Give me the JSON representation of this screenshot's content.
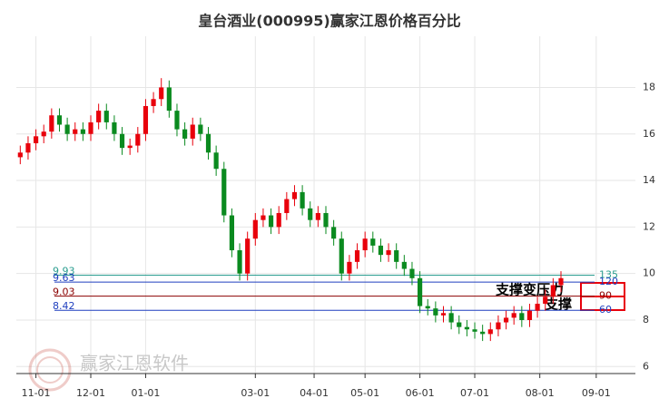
{
  "chart_data": {
    "type": "candlestick",
    "title": "皇台酒业(000995)赢家江恩价格百分比",
    "watermark": "赢家江恩软件",
    "up_color": "#e8000b",
    "down_color": "#0a8a1f",
    "ylim": [
      5.7,
      20.2
    ],
    "yticks": [
      6,
      8,
      10,
      12,
      14,
      16,
      18
    ],
    "xlim": [
      -0.5,
      78.5
    ],
    "xticks": [
      {
        "value": 2,
        "label": "11-01"
      },
      {
        "value": 9,
        "label": "12-01"
      },
      {
        "value": 16,
        "label": "01-01"
      },
      {
        "value": 30,
        "label": "03-01"
      },
      {
        "value": 37.5,
        "label": "04-01"
      },
      {
        "value": 44,
        "label": "05-01"
      },
      {
        "value": 51,
        "label": "06-01"
      },
      {
        "value": 58,
        "label": "07-01"
      },
      {
        "value": 66.3,
        "label": "08-01"
      },
      {
        "value": 73.5,
        "label": "09-01"
      }
    ],
    "grid": true,
    "levels": [
      {
        "value": 9.93,
        "score": 135,
        "color": "#2a9d8f"
      },
      {
        "value": 9.63,
        "score": 120,
        "color": "#1f3fbf"
      },
      {
        "value": 9.03,
        "score": 90,
        "color": "#8b0000"
      },
      {
        "value": 8.42,
        "score": 60,
        "color": "#1f3fbf"
      }
    ],
    "annotations": [
      "支撑变压力",
      "支撑"
    ],
    "candles": [
      [
        15.0,
        15.5,
        14.7,
        15.2
      ],
      [
        15.2,
        15.9,
        14.9,
        15.6
      ],
      [
        15.6,
        16.2,
        15.3,
        15.9
      ],
      [
        15.9,
        16.4,
        15.6,
        16.1
      ],
      [
        16.1,
        17.1,
        15.8,
        16.8
      ],
      [
        16.8,
        17.1,
        16.1,
        16.4
      ],
      [
        16.4,
        16.7,
        15.7,
        16.0
      ],
      [
        16.0,
        16.5,
        15.7,
        16.2
      ],
      [
        16.2,
        16.5,
        15.7,
        16.0
      ],
      [
        16.0,
        16.8,
        15.7,
        16.5
      ],
      [
        16.5,
        17.3,
        16.2,
        17.0
      ],
      [
        17.0,
        17.3,
        16.2,
        16.5
      ],
      [
        16.5,
        16.8,
        15.7,
        16.0
      ],
      [
        16.0,
        16.3,
        15.1,
        15.4
      ],
      [
        15.4,
        15.8,
        15.1,
        15.5
      ],
      [
        15.5,
        16.3,
        15.2,
        16.0
      ],
      [
        16.0,
        17.5,
        15.7,
        17.2
      ],
      [
        17.2,
        17.8,
        16.9,
        17.5
      ],
      [
        17.5,
        18.4,
        17.2,
        18.0
      ],
      [
        18.0,
        18.3,
        16.7,
        17.0
      ],
      [
        17.0,
        17.3,
        15.9,
        16.2
      ],
      [
        16.2,
        16.5,
        15.5,
        15.8
      ],
      [
        15.8,
        16.7,
        15.5,
        16.4
      ],
      [
        16.4,
        16.7,
        15.7,
        16.0
      ],
      [
        16.0,
        16.3,
        14.9,
        15.2
      ],
      [
        15.2,
        15.5,
        14.2,
        14.5
      ],
      [
        14.5,
        14.8,
        12.2,
        12.5
      ],
      [
        12.5,
        12.8,
        10.7,
        11.0
      ],
      [
        11.0,
        11.3,
        9.7,
        10.0
      ],
      [
        10.0,
        11.8,
        9.7,
        11.5
      ],
      [
        11.5,
        12.6,
        11.2,
        12.3
      ],
      [
        12.3,
        12.8,
        12.0,
        12.5
      ],
      [
        12.5,
        12.8,
        11.7,
        12.0
      ],
      [
        12.0,
        12.9,
        11.7,
        12.6
      ],
      [
        12.6,
        13.5,
        12.3,
        13.2
      ],
      [
        13.2,
        13.8,
        12.9,
        13.5
      ],
      [
        13.5,
        13.8,
        12.5,
        12.8
      ],
      [
        12.8,
        13.1,
        12.0,
        12.3
      ],
      [
        12.3,
        12.9,
        12.0,
        12.6
      ],
      [
        12.6,
        12.9,
        11.7,
        12.0
      ],
      [
        12.0,
        12.3,
        11.2,
        11.5
      ],
      [
        11.5,
        11.8,
        9.7,
        10.0
      ],
      [
        10.0,
        10.8,
        9.7,
        10.5
      ],
      [
        10.5,
        11.3,
        10.2,
        11.0
      ],
      [
        11.0,
        11.8,
        10.7,
        11.5
      ],
      [
        11.5,
        11.8,
        10.9,
        11.2
      ],
      [
        11.2,
        11.5,
        10.5,
        10.8
      ],
      [
        10.8,
        11.3,
        10.5,
        11.0
      ],
      [
        11.0,
        11.3,
        10.2,
        10.5
      ],
      [
        10.5,
        10.8,
        9.9,
        10.2
      ],
      [
        10.2,
        10.5,
        9.5,
        9.8
      ],
      [
        9.8,
        10.1,
        8.3,
        8.6
      ],
      [
        8.6,
        8.9,
        8.2,
        8.5
      ],
      [
        8.5,
        8.8,
        7.9,
        8.2
      ],
      [
        8.2,
        8.6,
        7.9,
        8.3
      ],
      [
        8.3,
        8.6,
        7.6,
        7.9
      ],
      [
        7.9,
        8.2,
        7.4,
        7.7
      ],
      [
        7.7,
        8.0,
        7.3,
        7.6
      ],
      [
        7.6,
        7.9,
        7.2,
        7.5
      ],
      [
        7.5,
        7.8,
        7.1,
        7.4
      ],
      [
        7.4,
        7.9,
        7.1,
        7.6
      ],
      [
        7.6,
        8.2,
        7.3,
        7.9
      ],
      [
        7.9,
        8.4,
        7.6,
        8.1
      ],
      [
        8.1,
        8.6,
        7.8,
        8.3
      ],
      [
        8.3,
        8.6,
        7.7,
        8.0
      ],
      [
        8.0,
        8.7,
        7.7,
        8.4
      ],
      [
        8.4,
        9.0,
        8.1,
        8.7
      ],
      [
        8.7,
        9.3,
        8.4,
        9.0
      ],
      [
        9.0,
        9.8,
        8.7,
        9.5
      ],
      [
        9.5,
        10.1,
        9.2,
        9.8
      ]
    ]
  }
}
